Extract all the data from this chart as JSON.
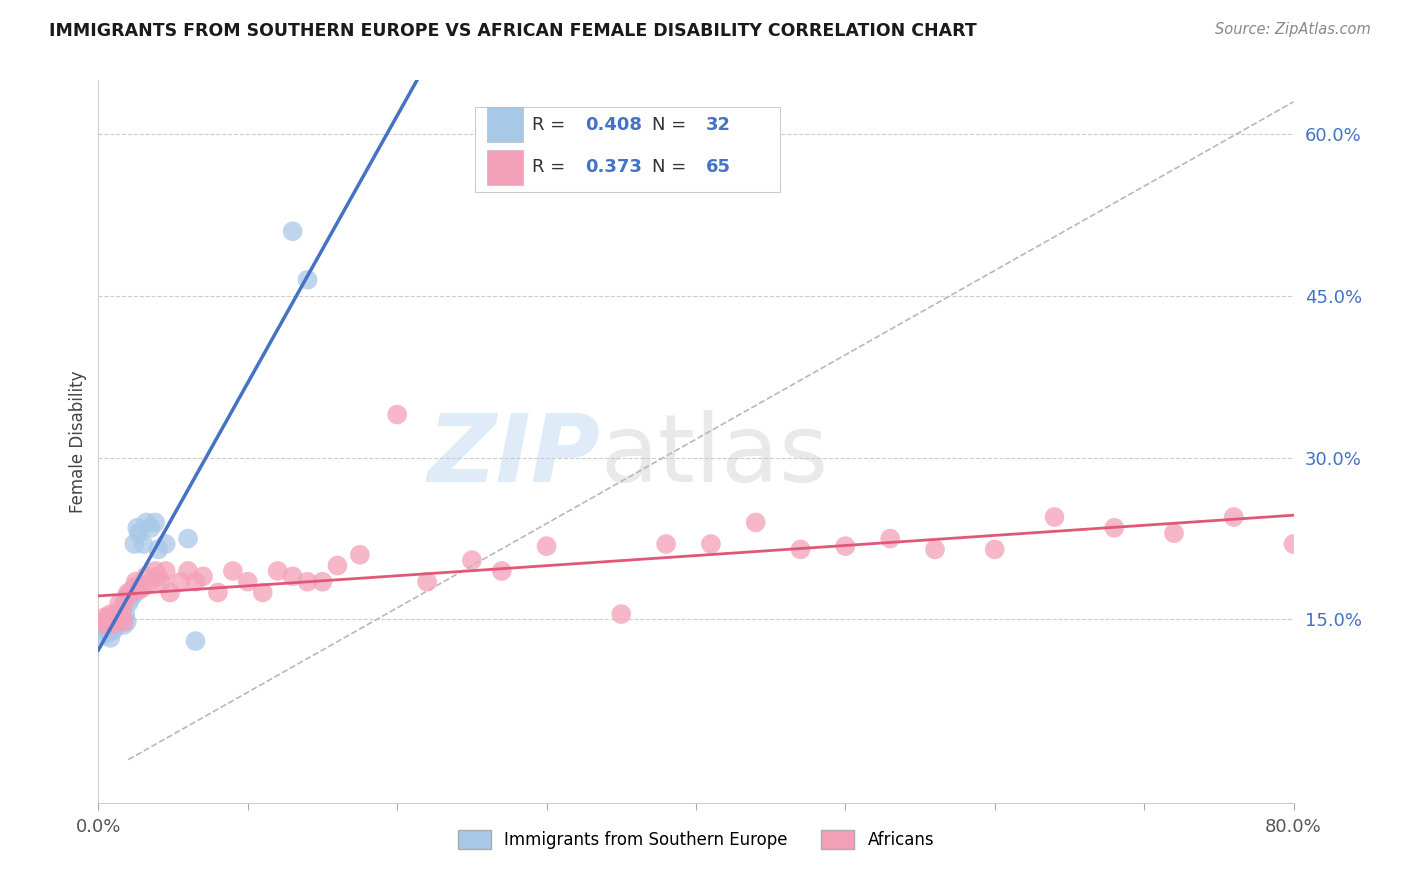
{
  "title": "IMMIGRANTS FROM SOUTHERN EUROPE VS AFRICAN FEMALE DISABILITY CORRELATION CHART",
  "source": "Source: ZipAtlas.com",
  "ylabel": "Female Disability",
  "xlim": [
    0.0,
    0.8
  ],
  "ylim": [
    -0.02,
    0.65
  ],
  "yticks": [
    0.15,
    0.3,
    0.45,
    0.6
  ],
  "ytick_labels": [
    "15.0%",
    "30.0%",
    "45.0%",
    "60.0%"
  ],
  "xticks": [
    0.0,
    0.1,
    0.2,
    0.3,
    0.4,
    0.5,
    0.6,
    0.7,
    0.8
  ],
  "xtick_labels": [
    "0.0%",
    "",
    "",
    "",
    "",
    "",
    "",
    "",
    "80.0%"
  ],
  "blue_R": 0.408,
  "blue_N": 32,
  "pink_R": 0.373,
  "pink_N": 65,
  "blue_color": "#a8c8e8",
  "pink_color": "#f4a0b8",
  "blue_line_color": "#4472c4",
  "pink_line_color": "#e05878",
  "diagonal_color": "#b8b8b8",
  "watermark_zip": "ZIP",
  "watermark_atlas": "atlas",
  "legend_label_blue": "Immigrants from Southern Europe",
  "legend_label_pink": "Africans",
  "blue_scatter_x": [
    0.003,
    0.005,
    0.006,
    0.007,
    0.008,
    0.009,
    0.01,
    0.011,
    0.012,
    0.013,
    0.014,
    0.015,
    0.016,
    0.017,
    0.018,
    0.019,
    0.02,
    0.022,
    0.024,
    0.025,
    0.026,
    0.027,
    0.03,
    0.032,
    0.035,
    0.038,
    0.04,
    0.045,
    0.06,
    0.065,
    0.13,
    0.14
  ],
  "blue_scatter_y": [
    0.135,
    0.14,
    0.145,
    0.138,
    0.133,
    0.148,
    0.14,
    0.143,
    0.15,
    0.155,
    0.148,
    0.153,
    0.16,
    0.145,
    0.155,
    0.148,
    0.165,
    0.17,
    0.22,
    0.175,
    0.235,
    0.23,
    0.22,
    0.24,
    0.235,
    0.24,
    0.215,
    0.22,
    0.225,
    0.13,
    0.51,
    0.465
  ],
  "pink_scatter_x": [
    0.003,
    0.004,
    0.005,
    0.006,
    0.007,
    0.008,
    0.009,
    0.01,
    0.011,
    0.012,
    0.013,
    0.014,
    0.015,
    0.016,
    0.017,
    0.018,
    0.019,
    0.02,
    0.022,
    0.024,
    0.025,
    0.026,
    0.028,
    0.03,
    0.032,
    0.035,
    0.038,
    0.04,
    0.042,
    0.045,
    0.048,
    0.055,
    0.06,
    0.065,
    0.07,
    0.08,
    0.09,
    0.1,
    0.11,
    0.12,
    0.13,
    0.14,
    0.15,
    0.16,
    0.175,
    0.2,
    0.22,
    0.25,
    0.27,
    0.3,
    0.35,
    0.38,
    0.41,
    0.44,
    0.47,
    0.5,
    0.53,
    0.56,
    0.6,
    0.64,
    0.68,
    0.72,
    0.76,
    0.8,
    0.84
  ],
  "pink_scatter_y": [
    0.148,
    0.152,
    0.145,
    0.15,
    0.148,
    0.155,
    0.145,
    0.148,
    0.155,
    0.15,
    0.155,
    0.165,
    0.15,
    0.16,
    0.148,
    0.168,
    0.172,
    0.175,
    0.175,
    0.18,
    0.185,
    0.18,
    0.178,
    0.18,
    0.19,
    0.185,
    0.195,
    0.19,
    0.185,
    0.195,
    0.175,
    0.185,
    0.195,
    0.185,
    0.19,
    0.175,
    0.195,
    0.185,
    0.175,
    0.195,
    0.19,
    0.185,
    0.185,
    0.2,
    0.21,
    0.34,
    0.185,
    0.205,
    0.195,
    0.218,
    0.155,
    0.22,
    0.22,
    0.24,
    0.215,
    0.218,
    0.225,
    0.215,
    0.215,
    0.245,
    0.235,
    0.23,
    0.245,
    0.22,
    0.225
  ],
  "background_color": "#ffffff",
  "grid_color": "#cccccc"
}
